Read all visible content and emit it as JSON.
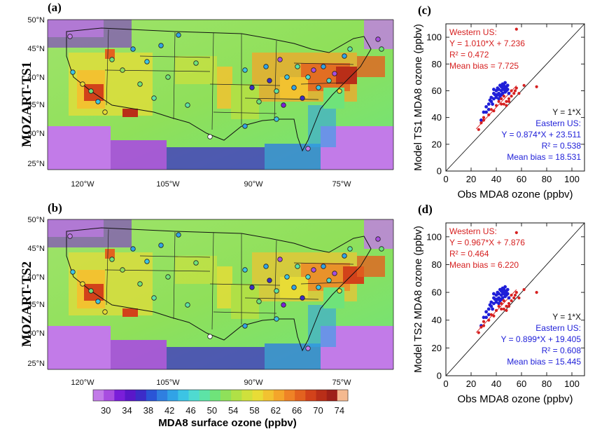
{
  "maps": [
    {
      "panel_label": "(a)",
      "row_label": "MOZART-TS1"
    },
    {
      "panel_label": "(b)",
      "row_label": "MOZART-TS2"
    }
  ],
  "map_lat_ticks": [
    "50°N",
    "45°N",
    "40°N",
    "35°N",
    "30°N",
    "25°N"
  ],
  "map_lon_ticks": [
    "120°W",
    "105°W",
    "90°W",
    "75°W"
  ],
  "colorbar": {
    "title": "MDA8 surface ozone (ppbv)",
    "ticks": [
      "30",
      "34",
      "38",
      "42",
      "46",
      "50",
      "54",
      "58",
      "62",
      "66",
      "70",
      "74"
    ],
    "colors": [
      "#c27be8",
      "#a84de0",
      "#7a1ed9",
      "#5a17c9",
      "#3c2cc8",
      "#2a55d6",
      "#2f7fe0",
      "#31a3e6",
      "#3cc4e4",
      "#4fdad0",
      "#5de3a6",
      "#6fe37a",
      "#8fe05a",
      "#b0e046",
      "#cfe03c",
      "#e8dc36",
      "#f2c230",
      "#f4a52a",
      "#ef8326",
      "#e3621f",
      "#d2421a",
      "#b92e18",
      "#9e2018",
      "#f5b98f"
    ]
  },
  "chart_data": [
    {
      "panel_label": "(c)",
      "type": "scatter",
      "xlabel": "Obs MDA8 ozone (ppbv)",
      "ylabel": "Model TS1 MDA8 ozone (ppbv)",
      "xlim": [
        0,
        110
      ],
      "ylim": [
        0,
        110
      ],
      "xticks": [
        "0",
        "20",
        "40",
        "60",
        "80",
        "100"
      ],
      "yticks": [
        "0",
        "20",
        "40",
        "60",
        "80",
        "100"
      ],
      "reference_line": "Y = 1*X",
      "western": {
        "color": "#d62020",
        "label": "Western US:",
        "equation": "Y = 1.010*X  + 7.236",
        "r2": "R² = 0.472",
        "bias": "Mean bias = 7.725",
        "fit": {
          "slope": 1.01,
          "intercept": 7.236,
          "x_range": [
            24,
            56
          ]
        },
        "points": [
          [
            56,
            106
          ],
          [
            26,
            31
          ],
          [
            28,
            36
          ],
          [
            30,
            40
          ],
          [
            36,
            46
          ],
          [
            40,
            49
          ],
          [
            42,
            52
          ],
          [
            44,
            50
          ],
          [
            46,
            50
          ],
          [
            48,
            52
          ],
          [
            50,
            54
          ],
          [
            52,
            56
          ],
          [
            54,
            58
          ],
          [
            56,
            62
          ],
          [
            58,
            58
          ],
          [
            48,
            49
          ],
          [
            50,
            52
          ],
          [
            52,
            60
          ],
          [
            55,
            60
          ],
          [
            62,
            64
          ],
          [
            72,
            63
          ],
          [
            46,
            56
          ],
          [
            44,
            54
          ],
          [
            38,
            45
          ],
          [
            34,
            42
          ],
          [
            30,
            38
          ]
        ]
      },
      "eastern": {
        "color": "#1e1ed8",
        "label": "Eastern US:",
        "equation": "Y = 0.874*X  + 23.511",
        "r2": "R² = 0.538",
        "bias": "Mean bias = 18.531",
        "points": [
          [
            28,
            38
          ],
          [
            30,
            44
          ],
          [
            32,
            48
          ],
          [
            34,
            50
          ],
          [
            35,
            53
          ],
          [
            36,
            55
          ],
          [
            38,
            54
          ],
          [
            38,
            58
          ],
          [
            39,
            57
          ],
          [
            40,
            60
          ],
          [
            40,
            55
          ],
          [
            41,
            62
          ],
          [
            42,
            58
          ],
          [
            42,
            61
          ],
          [
            43,
            64
          ],
          [
            43,
            56
          ],
          [
            44,
            60
          ],
          [
            44,
            63
          ],
          [
            45,
            62
          ],
          [
            45,
            65
          ],
          [
            45,
            58
          ],
          [
            46,
            61
          ],
          [
            46,
            64
          ],
          [
            47,
            62
          ],
          [
            47,
            66
          ],
          [
            48,
            63
          ],
          [
            48,
            60
          ],
          [
            49,
            61
          ],
          [
            50,
            58
          ],
          [
            38,
            61
          ],
          [
            36,
            52
          ],
          [
            41,
            57
          ],
          [
            44,
            57
          ],
          [
            42,
            54
          ],
          [
            40,
            57
          ],
          [
            47,
            59
          ],
          [
            49,
            64
          ],
          [
            34,
            46
          ],
          [
            32,
            44
          ],
          [
            37,
            50
          ]
        ]
      }
    },
    {
      "panel_label": "(d)",
      "type": "scatter",
      "xlabel": "Obs MDA8 ozone (ppbv)",
      "ylabel": "Model TS2 MDA8 ozone (ppbv)",
      "xlim": [
        0,
        110
      ],
      "ylim": [
        0,
        110
      ],
      "xticks": [
        "0",
        "20",
        "40",
        "60",
        "80",
        "100"
      ],
      "yticks": [
        "0",
        "20",
        "40",
        "60",
        "80",
        "100"
      ],
      "reference_line": "Y = 1*X",
      "western": {
        "color": "#d62020",
        "label": "Western US:",
        "equation": "Y = 0.967*X  + 7.876",
        "r2": "R² = 0.464",
        "bias": "Mean bias = 6.220",
        "fit": {
          "slope": 0.967,
          "intercept": 7.876,
          "x_range": [
            24,
            56
          ]
        },
        "points": [
          [
            56,
            103
          ],
          [
            26,
            31
          ],
          [
            28,
            35
          ],
          [
            30,
            39
          ],
          [
            36,
            44
          ],
          [
            40,
            47
          ],
          [
            42,
            50
          ],
          [
            44,
            48
          ],
          [
            46,
            48
          ],
          [
            48,
            50
          ],
          [
            50,
            52
          ],
          [
            52,
            54
          ],
          [
            54,
            56
          ],
          [
            56,
            60
          ],
          [
            58,
            56
          ],
          [
            48,
            47
          ],
          [
            50,
            50
          ],
          [
            52,
            58
          ],
          [
            55,
            58
          ],
          [
            62,
            62
          ],
          [
            72,
            60
          ],
          [
            46,
            54
          ],
          [
            44,
            52
          ],
          [
            38,
            43
          ],
          [
            34,
            40
          ],
          [
            30,
            36
          ]
        ]
      },
      "eastern": {
        "color": "#1e1ed8",
        "label": "Eastern US:",
        "equation": "Y = 0.899*X  + 19.405",
        "r2": "R² = 0.608",
        "bias": "Mean bias = 15.445",
        "points": [
          [
            28,
            36
          ],
          [
            30,
            42
          ],
          [
            32,
            46
          ],
          [
            34,
            48
          ],
          [
            35,
            51
          ],
          [
            36,
            53
          ],
          [
            38,
            52
          ],
          [
            38,
            56
          ],
          [
            39,
            55
          ],
          [
            40,
            58
          ],
          [
            40,
            53
          ],
          [
            41,
            60
          ],
          [
            42,
            56
          ],
          [
            42,
            59
          ],
          [
            43,
            62
          ],
          [
            43,
            54
          ],
          [
            44,
            58
          ],
          [
            44,
            61
          ],
          [
            45,
            60
          ],
          [
            45,
            63
          ],
          [
            45,
            56
          ],
          [
            46,
            59
          ],
          [
            46,
            62
          ],
          [
            47,
            60
          ],
          [
            47,
            64
          ],
          [
            48,
            61
          ],
          [
            48,
            58
          ],
          [
            49,
            59
          ],
          [
            50,
            56
          ],
          [
            38,
            59
          ],
          [
            36,
            50
          ],
          [
            41,
            55
          ],
          [
            44,
            55
          ],
          [
            42,
            52
          ],
          [
            40,
            55
          ],
          [
            47,
            57
          ],
          [
            49,
            62
          ],
          [
            34,
            44
          ],
          [
            32,
            42
          ],
          [
            37,
            48
          ]
        ]
      }
    }
  ]
}
